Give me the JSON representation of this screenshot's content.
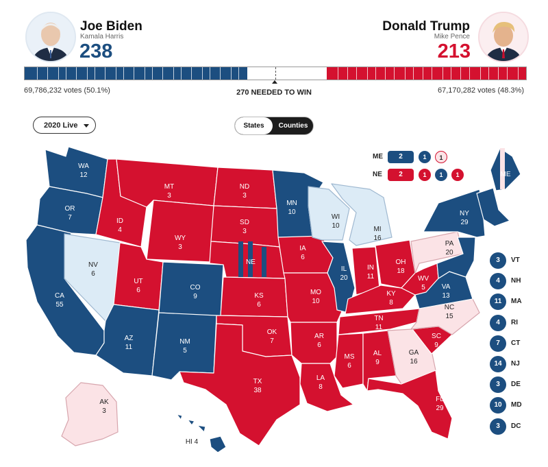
{
  "colors": {
    "dem": "#1c4e80",
    "rep": "#d4112f",
    "lean_dem": "#dcebf6",
    "lean_rep": "#fbe3e6",
    "tossup": "#ffffff"
  },
  "header": {
    "dem": {
      "name": "Joe Biden",
      "running_mate": "Kamala Harris",
      "electoral_votes": "238",
      "popular_votes": "69,786,232 votes (50.1%)",
      "avatar_icon": "biden-portrait"
    },
    "rep": {
      "name": "Donald Trump",
      "running_mate": "Mike Pence",
      "electoral_votes": "213",
      "popular_votes": "67,170,282 votes (48.3%)",
      "avatar_icon": "trump-portrait"
    },
    "needed_label": "270 NEEDED TO WIN",
    "progress": {
      "dem_share": 238,
      "rep_share": 213,
      "total": 538
    }
  },
  "controls": {
    "year_dropdown": {
      "label": "2020 Live",
      "icon": "chevron-down-icon"
    },
    "view_toggle": {
      "options": [
        "States",
        "Counties"
      ],
      "selected": "States"
    }
  },
  "states": [
    {
      "abbr": "WA",
      "ev": "12",
      "party": "dem"
    },
    {
      "abbr": "OR",
      "ev": "7",
      "party": "dem"
    },
    {
      "abbr": "CA",
      "ev": "55",
      "party": "dem"
    },
    {
      "abbr": "NV",
      "ev": "6",
      "party": "lean_dem"
    },
    {
      "abbr": "ID",
      "ev": "4",
      "party": "rep"
    },
    {
      "abbr": "MT",
      "ev": "3",
      "party": "rep"
    },
    {
      "abbr": "WY",
      "ev": "3",
      "party": "rep"
    },
    {
      "abbr": "UT",
      "ev": "6",
      "party": "rep"
    },
    {
      "abbr": "AZ",
      "ev": "11",
      "party": "dem"
    },
    {
      "abbr": "CO",
      "ev": "9",
      "party": "dem"
    },
    {
      "abbr": "NM",
      "ev": "5",
      "party": "dem"
    },
    {
      "abbr": "ND",
      "ev": "3",
      "party": "rep"
    },
    {
      "abbr": "SD",
      "ev": "3",
      "party": "rep"
    },
    {
      "abbr": "NE",
      "ev": "",
      "party": "rep"
    },
    {
      "abbr": "KS",
      "ev": "6",
      "party": "rep"
    },
    {
      "abbr": "OK",
      "ev": "7",
      "party": "rep"
    },
    {
      "abbr": "TX",
      "ev": "38",
      "party": "rep"
    },
    {
      "abbr": "MN",
      "ev": "10",
      "party": "dem"
    },
    {
      "abbr": "IA",
      "ev": "6",
      "party": "rep"
    },
    {
      "abbr": "MO",
      "ev": "10",
      "party": "rep"
    },
    {
      "abbr": "AR",
      "ev": "6",
      "party": "rep"
    },
    {
      "abbr": "LA",
      "ev": "8",
      "party": "rep"
    },
    {
      "abbr": "WI",
      "ev": "10",
      "party": "lean_dem"
    },
    {
      "abbr": "IL",
      "ev": "20",
      "party": "dem"
    },
    {
      "abbr": "MS",
      "ev": "6",
      "party": "rep"
    },
    {
      "abbr": "MI",
      "ev": "16",
      "party": "lean_dem"
    },
    {
      "abbr": "IN",
      "ev": "11",
      "party": "rep"
    },
    {
      "abbr": "KY",
      "ev": "8",
      "party": "rep"
    },
    {
      "abbr": "TN",
      "ev": "11",
      "party": "rep"
    },
    {
      "abbr": "AL",
      "ev": "9",
      "party": "rep"
    },
    {
      "abbr": "OH",
      "ev": "18",
      "party": "rep"
    },
    {
      "abbr": "WV",
      "ev": "5",
      "party": "rep"
    },
    {
      "abbr": "VA",
      "ev": "13",
      "party": "dem"
    },
    {
      "abbr": "NC",
      "ev": "15",
      "party": "lean_rep"
    },
    {
      "abbr": "SC",
      "ev": "9",
      "party": "rep"
    },
    {
      "abbr": "GA",
      "ev": "16",
      "party": "lean_rep"
    },
    {
      "abbr": "FL",
      "ev": "29",
      "party": "rep"
    },
    {
      "abbr": "PA",
      "ev": "20",
      "party": "lean_rep"
    },
    {
      "abbr": "NY",
      "ev": "29",
      "party": "dem"
    },
    {
      "abbr": "ME",
      "ev": "",
      "party": "dem"
    },
    {
      "abbr": "AK",
      "ev": "3",
      "party": "lean_rep"
    },
    {
      "abbr": "HI",
      "ev": "4",
      "party": "dem"
    }
  ],
  "hi_label": "HI 4",
  "split_states": {
    "ME": {
      "label": "ME",
      "total": "2",
      "districts": [
        "1",
        "1"
      ]
    },
    "NE": {
      "label": "NE",
      "total": "2",
      "districts": [
        "1",
        "1",
        "1"
      ]
    }
  },
  "small_states": [
    {
      "abbr": "VT",
      "ev": "3"
    },
    {
      "abbr": "NH",
      "ev": "4"
    },
    {
      "abbr": "MA",
      "ev": "11"
    },
    {
      "abbr": "RI",
      "ev": "4"
    },
    {
      "abbr": "CT",
      "ev": "7"
    },
    {
      "abbr": "NJ",
      "ev": "14"
    },
    {
      "abbr": "DE",
      "ev": "3"
    },
    {
      "abbr": "MD",
      "ev": "10"
    },
    {
      "abbr": "DC",
      "ev": "3"
    }
  ]
}
